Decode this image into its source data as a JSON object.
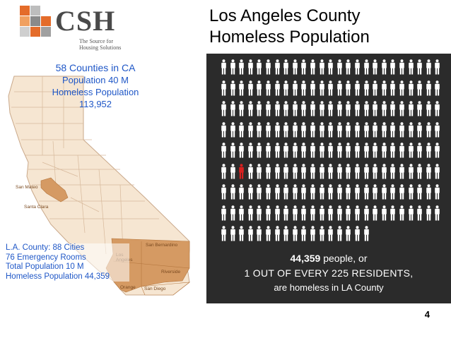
{
  "logo": {
    "text": "CSH",
    "tagline": "The Source for Housing Solutions",
    "colors": [
      "#e46c2a",
      "#bdbdbd",
      "#ffffff",
      "#f0a060",
      "#8a8a8a",
      "#e46c2a",
      "#cfcfcf",
      "#e46c2a",
      "#a0a0a0"
    ]
  },
  "title": {
    "line1": "Los Angeles County",
    "line2": "Homeless Population"
  },
  "ca_info": {
    "counties": "58 Counties in CA",
    "population": "Population 40 M",
    "homeless_label": "Homeless Population",
    "homeless_value": "113,952"
  },
  "la_info": {
    "cities": "L.A. County: 88 Cities",
    "er": "76 Emergency Rooms",
    "population": "Total Population 10 M",
    "homeless": "Homeless Population 44,359"
  },
  "map_labels": {
    "san_mateo": "San Mateo",
    "santa_clara": "Santa Clara",
    "san_bernardino": "San Bernardino",
    "los_angeles": "Los Angeles",
    "riverside": "Riverside",
    "orange": "Orange",
    "san_diego": "San Diego"
  },
  "pictogram": {
    "rows": [
      25,
      25,
      25,
      25,
      25,
      25,
      25,
      25,
      17
    ],
    "highlight_row": 5,
    "highlight_col": 2,
    "person_color": "#ffffff",
    "highlight_color": "#d9201f"
  },
  "panel": {
    "count": "44,359",
    "count_suffix": " people, or",
    "ratio": "1 OUT OF EVERY 225 RESIDENTS,",
    "tail": "are homeless in LA County"
  },
  "page_number": "4"
}
